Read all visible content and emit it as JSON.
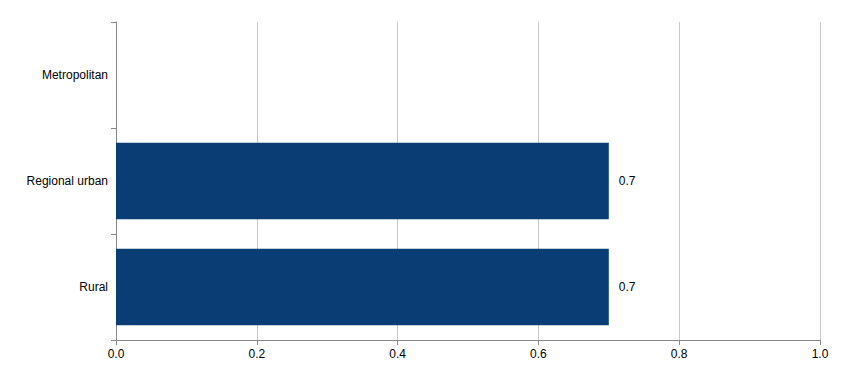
{
  "chart_data": {
    "type": "bar",
    "orientation": "horizontal",
    "categories": [
      "Metropolitan",
      "Regional urban",
      "Rural"
    ],
    "values": [
      null,
      0.7,
      0.7
    ],
    "color": "#0a3d73",
    "xlim": [
      0,
      1
    ],
    "xticks": [
      {
        "value": 0,
        "label": "0.0"
      },
      0.2,
      0.4,
      0.6,
      0.8,
      {
        "value": 1,
        "label": "1.0"
      }
    ],
    "grid": true,
    "data_labels": true
  }
}
